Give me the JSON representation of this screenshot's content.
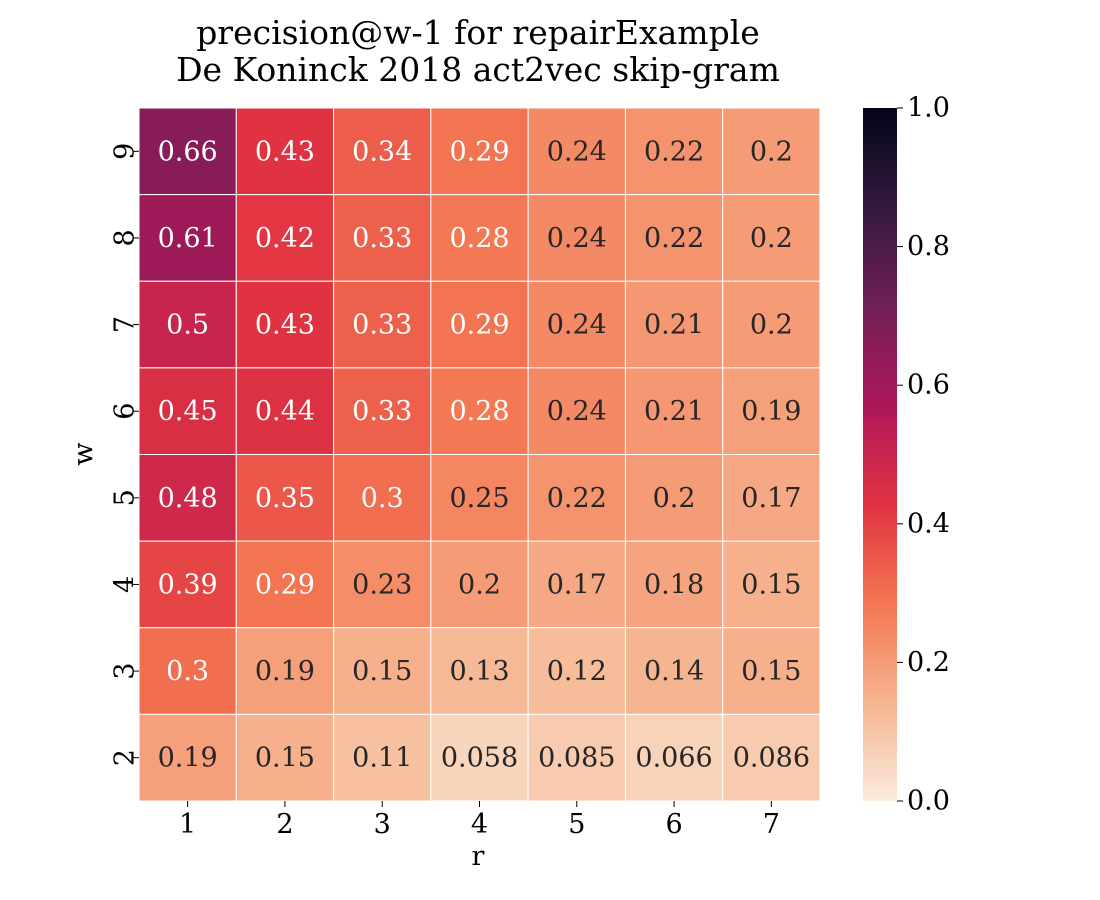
{
  "chart_data": {
    "type": "heatmap",
    "title_line1": "precision@w-1 for repairExample",
    "title_line2": "De Koninck 2018 act2vec skip-gram",
    "xlabel": "r",
    "ylabel": "w",
    "x_categories": [
      "1",
      "2",
      "3",
      "4",
      "5",
      "6",
      "7"
    ],
    "y_categories_top_to_bottom": [
      "9",
      "8",
      "7",
      "6",
      "5",
      "4",
      "3",
      "2"
    ],
    "values": [
      [
        0.66,
        0.43,
        0.34,
        0.29,
        0.24,
        0.22,
        0.2
      ],
      [
        0.61,
        0.42,
        0.33,
        0.28,
        0.24,
        0.22,
        0.2
      ],
      [
        0.5,
        0.43,
        0.33,
        0.29,
        0.24,
        0.21,
        0.2
      ],
      [
        0.45,
        0.44,
        0.33,
        0.28,
        0.24,
        0.21,
        0.19
      ],
      [
        0.48,
        0.35,
        0.3,
        0.25,
        0.22,
        0.2,
        0.17
      ],
      [
        0.39,
        0.29,
        0.23,
        0.2,
        0.17,
        0.18,
        0.15
      ],
      [
        0.3,
        0.19,
        0.15,
        0.13,
        0.12,
        0.14,
        0.15
      ],
      [
        0.19,
        0.15,
        0.11,
        0.058,
        0.085,
        0.066,
        0.086
      ]
    ],
    "value_labels": [
      [
        "0.66",
        "0.43",
        "0.34",
        "0.29",
        "0.24",
        "0.22",
        "0.2"
      ],
      [
        "0.61",
        "0.42",
        "0.33",
        "0.28",
        "0.24",
        "0.22",
        "0.2"
      ],
      [
        "0.5",
        "0.43",
        "0.33",
        "0.29",
        "0.24",
        "0.21",
        "0.2"
      ],
      [
        "0.45",
        "0.44",
        "0.33",
        "0.28",
        "0.24",
        "0.21",
        "0.19"
      ],
      [
        "0.48",
        "0.35",
        "0.3",
        "0.25",
        "0.22",
        "0.2",
        "0.17"
      ],
      [
        "0.39",
        "0.29",
        "0.23",
        "0.2",
        "0.17",
        "0.18",
        "0.15"
      ],
      [
        "0.3",
        "0.19",
        "0.15",
        "0.13",
        "0.12",
        "0.14",
        "0.15"
      ],
      [
        "0.19",
        "0.15",
        "0.11",
        "0.058",
        "0.085",
        "0.066",
        "0.086"
      ]
    ],
    "vmin": 0.0,
    "vmax": 1.0,
    "colorbar_ticks": [
      0.0,
      0.2,
      0.4,
      0.6,
      0.8,
      1.0
    ],
    "colorbar_tick_labels": [
      "0.0",
      "0.2",
      "0.4",
      "0.6",
      "0.8",
      "1.0"
    ],
    "colormap": "rocket_r",
    "colormap_stops": [
      "#faebdd",
      "#f6b48f",
      "#f37651",
      "#e13342",
      "#ad1759",
      "#701f57",
      "#35193e",
      "#03051a"
    ],
    "colorbar_position": "right"
  }
}
